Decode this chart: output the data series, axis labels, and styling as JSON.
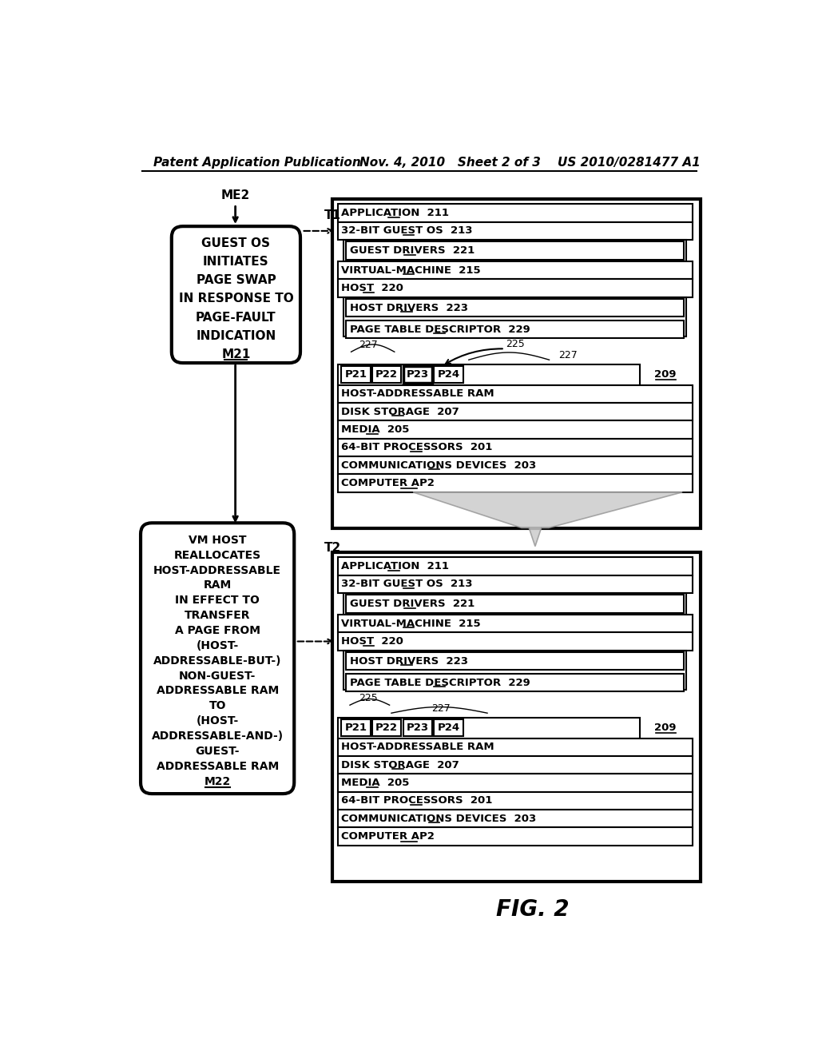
{
  "header_left": "Patent Application Publication",
  "header_mid": "Nov. 4, 2010   Sheet 2 of 3",
  "header_right": "US 2010/0281477 A1",
  "fig_label": "FIG. 2",
  "bg_color": "#ffffff",
  "box1_lines": [
    "GUEST OS",
    "INITIATES",
    "PAGE SWAP",
    "IN RESPONSE TO",
    "PAGE-FAULT",
    "INDICATION",
    "M21"
  ],
  "box2_lines": [
    "VM HOST",
    "REALLOCATES",
    "HOST-ADDRESSABLE",
    "RAM",
    "IN EFFECT TO",
    "TRANSFER",
    "A PAGE FROM",
    "(HOST-",
    "ADDRESSABLE-BUT-)",
    "NON-GUEST-",
    "ADDRESSABLE RAM",
    "TO",
    "(HOST-",
    "ADDRESSABLE-AND-)",
    "GUEST-",
    "ADDRESSABLE RAM",
    "M22"
  ],
  "top_pages": [
    "P21",
    "P22",
    "P23",
    "P24"
  ],
  "top_pages_highlight": "P23",
  "bot_pages": [
    "P21",
    "P22",
    "P23",
    "P24"
  ],
  "bot_pages_highlight": "none"
}
